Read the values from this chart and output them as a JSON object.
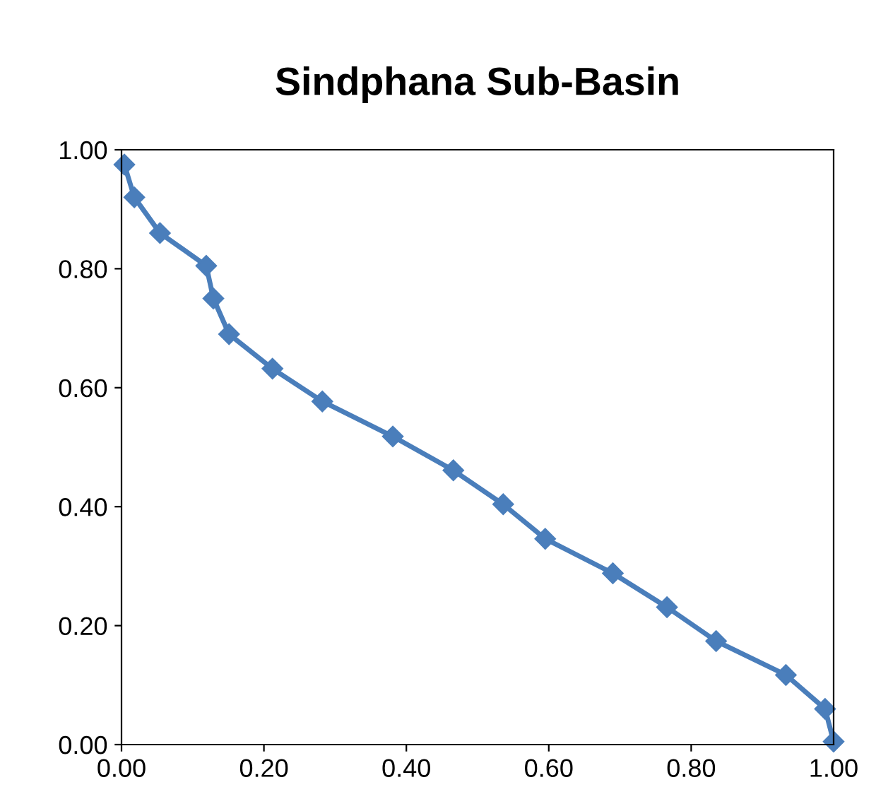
{
  "chart_data": {
    "type": "line",
    "title": "Sindphana Sub-Basin",
    "series": [
      {
        "color": "#4a7ebb",
        "x": [
          0.004,
          0.018,
          0.054,
          0.119,
          0.129,
          0.151,
          0.212,
          0.282,
          0.381,
          0.466,
          0.536,
          0.595,
          0.69,
          0.766,
          0.835,
          0.933,
          0.988,
          1.0
        ],
        "values": [
          0.975,
          0.92,
          0.86,
          0.805,
          0.75,
          0.69,
          0.632,
          0.577,
          0.518,
          0.461,
          0.404,
          0.346,
          0.288,
          0.231,
          0.174,
          0.117,
          0.06,
          0.005
        ]
      }
    ],
    "xlim": [
      0,
      1
    ],
    "ylim": [
      0,
      1
    ],
    "xticks": [
      {
        "value": 0,
        "label": "0.00"
      },
      {
        "value": 0.2,
        "label": "0.20"
      },
      {
        "value": 0.4,
        "label": "0.40"
      },
      {
        "value": 0.6,
        "label": "0.60"
      },
      {
        "value": 0.8,
        "label": "0.80"
      },
      {
        "value": 1,
        "label": "1.00"
      }
    ],
    "yticks": [
      {
        "value": 0,
        "label": "0.00"
      },
      {
        "value": 0.2,
        "label": "0.20"
      },
      {
        "value": 0.4,
        "label": "0.40"
      },
      {
        "value": 0.6,
        "label": "0.60"
      },
      {
        "value": 0.8,
        "label": "0.80"
      },
      {
        "value": 1,
        "label": "1.00"
      }
    ],
    "marker": "diamond",
    "line_style": "solid",
    "grid": false,
    "legend": false
  }
}
